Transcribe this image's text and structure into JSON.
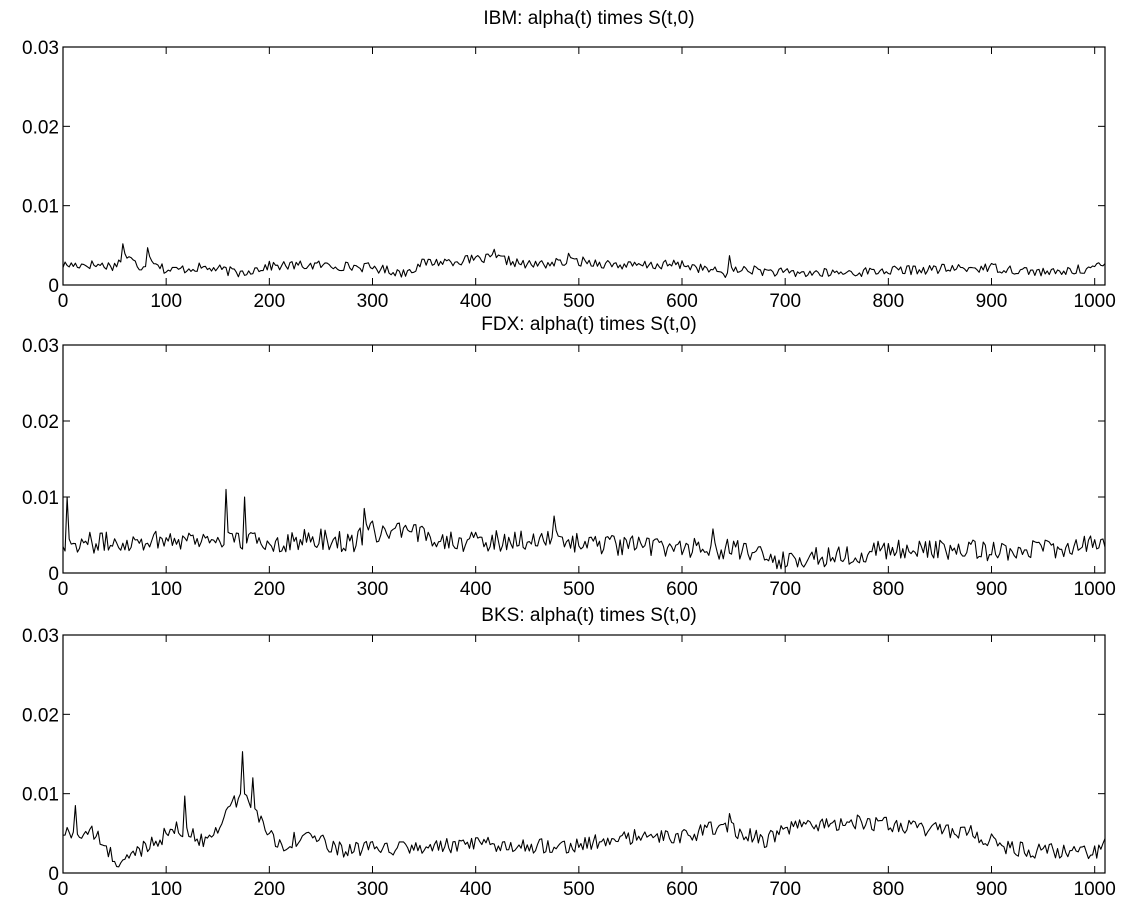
{
  "chart_data": [
    {
      "type": "line",
      "title": "IBM: alpha(t) times S(t,0)",
      "xlim": [
        0,
        1010
      ],
      "ylim": [
        0,
        0.03
      ],
      "x_ticks": [
        "0",
        "100",
        "200",
        "300",
        "400",
        "500",
        "600",
        "700",
        "800",
        "900",
        "1000"
      ],
      "y_ticks": [
        "0",
        "0.01",
        "0.02",
        "0.03"
      ],
      "grid": false,
      "profile": [
        [
          0,
          0.0025
        ],
        [
          25,
          0.0026
        ],
        [
          50,
          0.0024
        ],
        [
          60,
          0.0038
        ],
        [
          75,
          0.0022
        ],
        [
          85,
          0.0035
        ],
        [
          100,
          0.0018
        ],
        [
          130,
          0.0022
        ],
        [
          150,
          0.002
        ],
        [
          170,
          0.0015
        ],
        [
          200,
          0.0024
        ],
        [
          250,
          0.0025
        ],
        [
          300,
          0.0022
        ],
        [
          330,
          0.0015
        ],
        [
          350,
          0.0028
        ],
        [
          400,
          0.0032
        ],
        [
          420,
          0.0034
        ],
        [
          450,
          0.0025
        ],
        [
          500,
          0.003
        ],
        [
          550,
          0.0024
        ],
        [
          600,
          0.0026
        ],
        [
          640,
          0.0015
        ],
        [
          660,
          0.002
        ],
        [
          700,
          0.0015
        ],
        [
          750,
          0.0015
        ],
        [
          800,
          0.0018
        ],
        [
          900,
          0.0022
        ],
        [
          960,
          0.0015
        ],
        [
          1010,
          0.0024
        ]
      ],
      "noise": 0.0006,
      "floor": 0.0003,
      "spikes": [
        [
          58,
          0.0052
        ],
        [
          82,
          0.0047
        ],
        [
          417,
          0.0045
        ],
        [
          645,
          0.0037
        ],
        [
          490,
          0.004
        ]
      ]
    },
    {
      "type": "line",
      "title": "FDX: alpha(t) times S(t,0)",
      "xlim": [
        0,
        1010
      ],
      "ylim": [
        0,
        0.03
      ],
      "x_ticks": [
        "0",
        "100",
        "200",
        "300",
        "400",
        "500",
        "600",
        "700",
        "800",
        "900",
        "1000"
      ],
      "y_ticks": [
        "0",
        "0.01",
        "0.02",
        "0.03"
      ],
      "grid": false,
      "profile": [
        [
          0,
          0.004
        ],
        [
          50,
          0.004
        ],
        [
          100,
          0.0045
        ],
        [
          150,
          0.0045
        ],
        [
          200,
          0.004
        ],
        [
          250,
          0.0045
        ],
        [
          280,
          0.004
        ],
        [
          300,
          0.0055
        ],
        [
          350,
          0.005
        ],
        [
          400,
          0.004
        ],
        [
          450,
          0.0045
        ],
        [
          500,
          0.004
        ],
        [
          550,
          0.0035
        ],
        [
          600,
          0.0035
        ],
        [
          650,
          0.003
        ],
        [
          700,
          0.0015
        ],
        [
          720,
          0.002
        ],
        [
          800,
          0.003
        ],
        [
          900,
          0.003
        ],
        [
          1000,
          0.0035
        ],
        [
          1010,
          0.0045
        ]
      ],
      "noise": 0.0014,
      "floor": 0.0005,
      "spikes": [
        [
          3,
          0.01
        ],
        [
          158,
          0.011
        ],
        [
          175,
          0.01
        ],
        [
          292,
          0.0085
        ],
        [
          475,
          0.0075
        ],
        [
          630,
          0.0058
        ],
        [
          712,
          0.0008
        ]
      ]
    },
    {
      "type": "line",
      "title": "BKS: alpha(t) times S(t,0)",
      "xlim": [
        0,
        1010
      ],
      "ylim": [
        0,
        0.03
      ],
      "x_ticks": [
        "0",
        "100",
        "200",
        "300",
        "400",
        "500",
        "600",
        "700",
        "800",
        "900",
        "1000"
      ],
      "y_ticks": [
        "0",
        "0.01",
        "0.02",
        "0.03"
      ],
      "grid": false,
      "profile": [
        [
          0,
          0.005
        ],
        [
          30,
          0.005
        ],
        [
          45,
          0.0025
        ],
        [
          55,
          0.001
        ],
        [
          80,
          0.0035
        ],
        [
          110,
          0.0055
        ],
        [
          140,
          0.004
        ],
        [
          160,
          0.008
        ],
        [
          175,
          0.01
        ],
        [
          195,
          0.006
        ],
        [
          210,
          0.0035
        ],
        [
          240,
          0.005
        ],
        [
          260,
          0.003
        ],
        [
          300,
          0.003
        ],
        [
          400,
          0.0035
        ],
        [
          450,
          0.0035
        ],
        [
          500,
          0.0035
        ],
        [
          550,
          0.0045
        ],
        [
          600,
          0.0045
        ],
        [
          640,
          0.006
        ],
        [
          680,
          0.004
        ],
        [
          700,
          0.0055
        ],
        [
          760,
          0.0065
        ],
        [
          800,
          0.006
        ],
        [
          880,
          0.005
        ],
        [
          920,
          0.003
        ],
        [
          1000,
          0.0025
        ],
        [
          1010,
          0.004
        ]
      ],
      "noise": 0.001,
      "floor": 0.0005,
      "spikes": [
        [
          12,
          0.0085
        ],
        [
          118,
          0.0097
        ],
        [
          173,
          0.0153
        ],
        [
          183,
          0.012
        ],
        [
          645,
          0.0075
        ],
        [
          770,
          0.0073
        ]
      ]
    }
  ]
}
